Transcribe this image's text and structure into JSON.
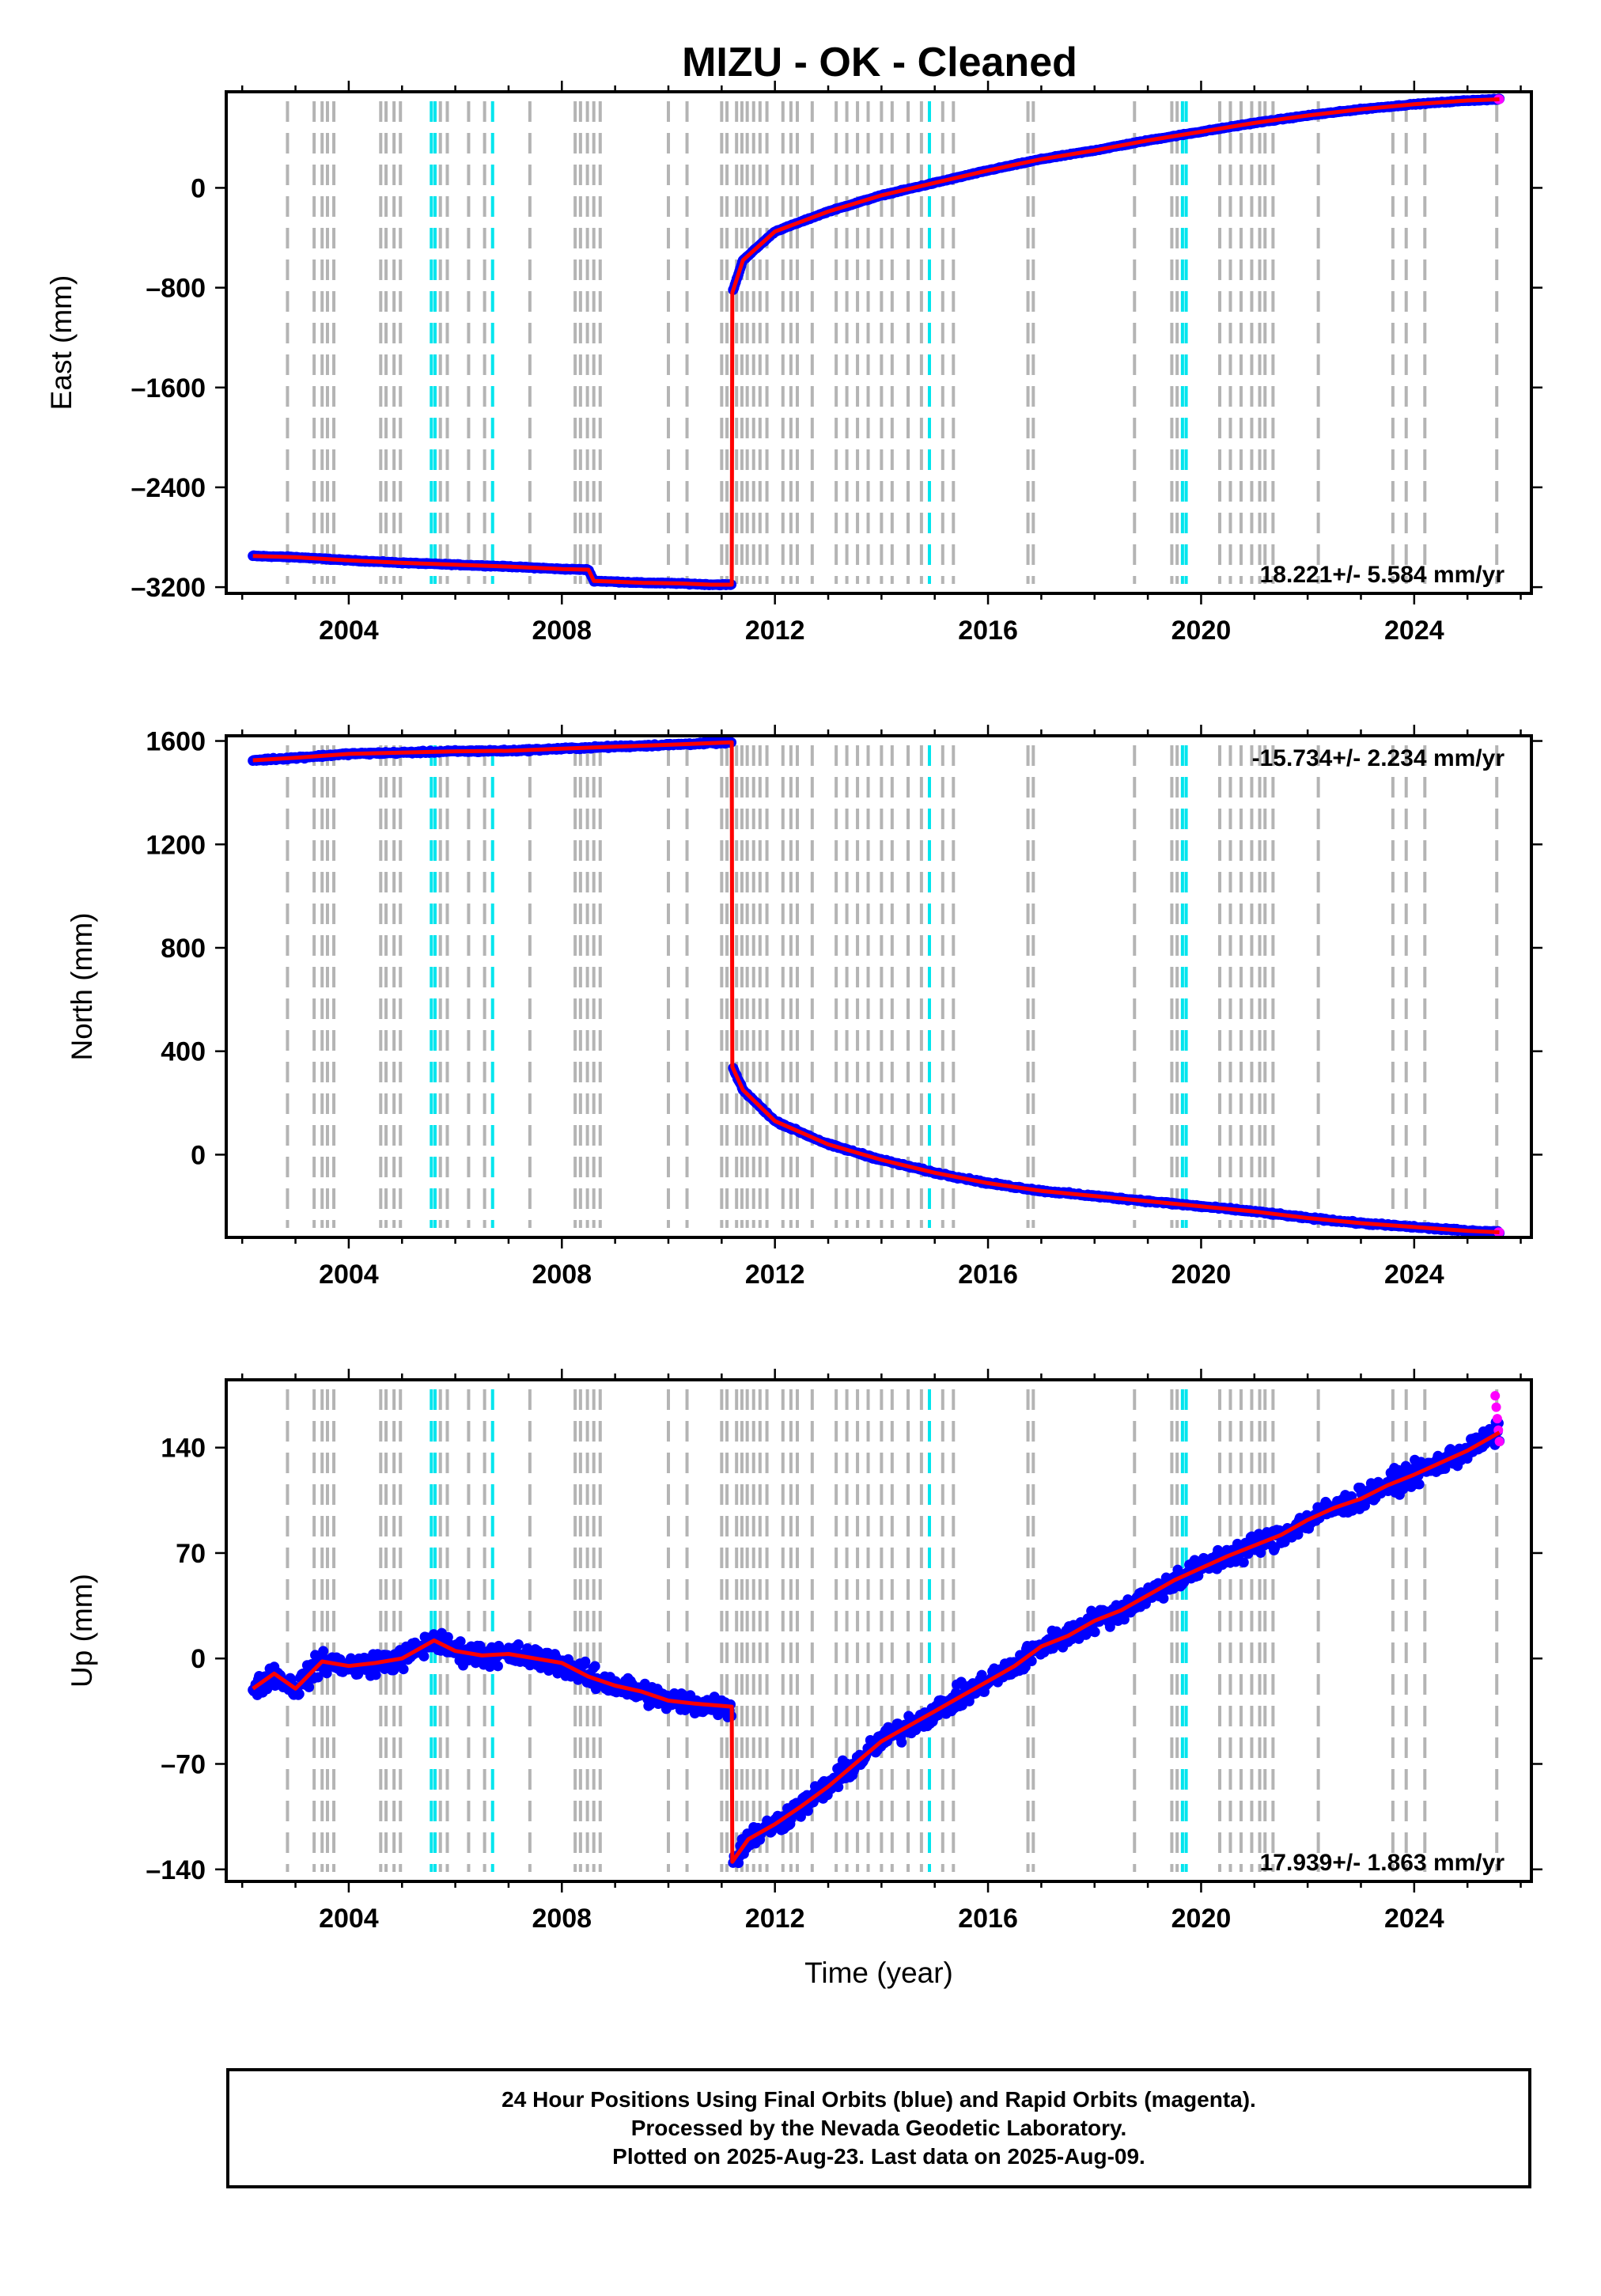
{
  "title": "MIZU  - OK - Cleaned",
  "footer": {
    "line1": "24 Hour Positions Using Final Orbits (blue) and Rapid Orbits (magenta).",
    "line2": "Processed by the Nevada Geodetic Laboratory.",
    "line3": "Plotted on 2025-Aug-23. Last data on 2025-Aug-09."
  },
  "colors": {
    "final_orbits": "#0000ff",
    "rapid_orbits": "#ff00ff",
    "model": "#ff0000",
    "equipment_change": "#b4b4b4",
    "earthquake": "#00e5ee"
  },
  "chart_data": [
    {
      "type": "scatter",
      "panel": "east",
      "ylabel": "East (mm)",
      "xlabel": "",
      "xlim": [
        2001.7,
        2026.2
      ],
      "ylim": [
        -3250,
        770
      ],
      "yticks": [
        0,
        -800,
        -1600,
        -2400,
        -3200
      ],
      "yticklabels": [
        "0",
        "–800",
        "–1600",
        "–2400",
        "–3200"
      ],
      "xticks": [
        2004,
        2008,
        2012,
        2016,
        2020,
        2024
      ],
      "rate_label": "18.221+/- 5.584 mm/yr",
      "rate_position": "bottom-right",
      "series": [
        {
          "role": "daily positions and model",
          "x": [
            2002.2,
            2003.0,
            2004.0,
            2005.0,
            2006.0,
            2007.0,
            2008.0,
            2008.5,
            2008.6,
            2009.5,
            2010.2,
            2010.8,
            2011.19,
            2011.2,
            2011.4,
            2012.0,
            2013.0,
            2014.0,
            2015.0,
            2016.0,
            2017.0,
            2018.0,
            2019.0,
            2020.0,
            2021.0,
            2022.0,
            2023.0,
            2024.0,
            2025.0,
            2025.6
          ],
          "y": [
            -2950,
            -2960,
            -2985,
            -3005,
            -3020,
            -3035,
            -3055,
            -3060,
            -3150,
            -3165,
            -3170,
            -3180,
            -3180,
            -840,
            -580,
            -350,
            -190,
            -60,
            40,
            140,
            230,
            300,
            380,
            450,
            520,
            580,
            630,
            670,
            700,
            710
          ]
        }
      ]
    },
    {
      "type": "scatter",
      "panel": "north",
      "ylabel": "North (mm)",
      "xlabel": "",
      "xlim": [
        2001.7,
        2026.2
      ],
      "ylim": [
        -320,
        1620
      ],
      "yticks": [
        1600,
        1200,
        800,
        400,
        0
      ],
      "yticklabels": [
        "1600",
        "1200",
        "800",
        "400",
        "0"
      ],
      "xticks": [
        2004,
        2008,
        2012,
        2016,
        2020,
        2024
      ],
      "rate_label": "-15.734+/- 2.234 mm/yr",
      "rate_position": "top-right",
      "series": [
        {
          "role": "daily positions and model",
          "x": [
            2002.2,
            2003.0,
            2004.0,
            2005.0,
            2006.0,
            2007.0,
            2008.0,
            2009.0,
            2010.0,
            2011.19,
            2011.2,
            2011.4,
            2012.0,
            2013.0,
            2014.0,
            2015.0,
            2016.0,
            2017.0,
            2018.0,
            2019.0,
            2020.0,
            2021.0,
            2022.0,
            2023.0,
            2024.0,
            2025.0,
            2025.6
          ],
          "y": [
            1525,
            1535,
            1550,
            1555,
            1560,
            1562,
            1570,
            1578,
            1585,
            1595,
            340,
            250,
            130,
            40,
            -20,
            -70,
            -110,
            -140,
            -160,
            -180,
            -200,
            -220,
            -245,
            -265,
            -280,
            -295,
            -300
          ]
        }
      ]
    },
    {
      "type": "scatter",
      "panel": "up",
      "ylabel": "Up (mm)",
      "xlabel": "Time (year)",
      "xlim": [
        2001.7,
        2026.2
      ],
      "ylim": [
        -148,
        185
      ],
      "yticks": [
        140,
        70,
        0,
        -70,
        -140
      ],
      "yticklabels": [
        "140",
        "70",
        "0",
        "–70",
        "–140"
      ],
      "xticks": [
        2004,
        2008,
        2012,
        2016,
        2020,
        2024
      ],
      "rate_label": "17.939+/- 1.863 mm/yr",
      "rate_position": "bottom-right",
      "series": [
        {
          "role": "daily positions and model",
          "x": [
            2002.2,
            2002.6,
            2003.0,
            2003.5,
            2004.0,
            2004.5,
            2005.0,
            2005.6,
            2006.0,
            2006.5,
            2007.0,
            2007.5,
            2008.0,
            2008.5,
            2009.0,
            2009.5,
            2010.0,
            2010.5,
            2011.19,
            2011.2,
            2011.5,
            2012.0,
            2012.5,
            2013.0,
            2013.5,
            2014.0,
            2014.5,
            2015.0,
            2015.5,
            2016.0,
            2016.5,
            2017.0,
            2017.5,
            2018.0,
            2018.5,
            2019.0,
            2019.5,
            2020.0,
            2020.5,
            2021.0,
            2021.5,
            2022.0,
            2022.5,
            2023.0,
            2023.5,
            2024.0,
            2024.5,
            2025.0,
            2025.6
          ],
          "y": [
            -20,
            -10,
            -20,
            -2,
            -5,
            -3,
            0,
            12,
            5,
            2,
            3,
            0,
            -3,
            -12,
            -18,
            -22,
            -28,
            -30,
            -32,
            -135,
            -120,
            -110,
            -98,
            -85,
            -70,
            -55,
            -45,
            -35,
            -25,
            -15,
            -5,
            8,
            15,
            25,
            32,
            42,
            52,
            60,
            68,
            75,
            82,
            92,
            100,
            106,
            115,
            122,
            130,
            138,
            150
          ]
        }
      ]
    }
  ],
  "equipment_change_years": [
    2002.85,
    2003.35,
    2003.5,
    2003.6,
    2003.72,
    2004.6,
    2004.7,
    2004.85,
    2004.97,
    2005.72,
    2005.85,
    2006.25,
    2006.55,
    2007.4,
    2008.25,
    2008.35,
    2008.48,
    2008.6,
    2008.72,
    2010.0,
    2010.35,
    2011.0,
    2011.1,
    2011.28,
    2011.38,
    2011.48,
    2011.6,
    2011.72,
    2011.85,
    2012.15,
    2012.3,
    2012.42,
    2012.7,
    2013.15,
    2013.35,
    2013.55,
    2013.75,
    2014.0,
    2014.2,
    2014.5,
    2014.75,
    2015.15,
    2015.35,
    2016.75,
    2016.85,
    2018.75,
    2019.45,
    2019.55,
    2020.35,
    2020.55,
    2020.75,
    2020.95,
    2021.1,
    2021.2,
    2021.35,
    2022.2,
    2023.6,
    2023.85,
    2024.2,
    2025.55
  ],
  "earthquake_years": [
    2005.55,
    2005.62,
    2006.7,
    2014.9,
    2019.65,
    2019.72
  ]
}
